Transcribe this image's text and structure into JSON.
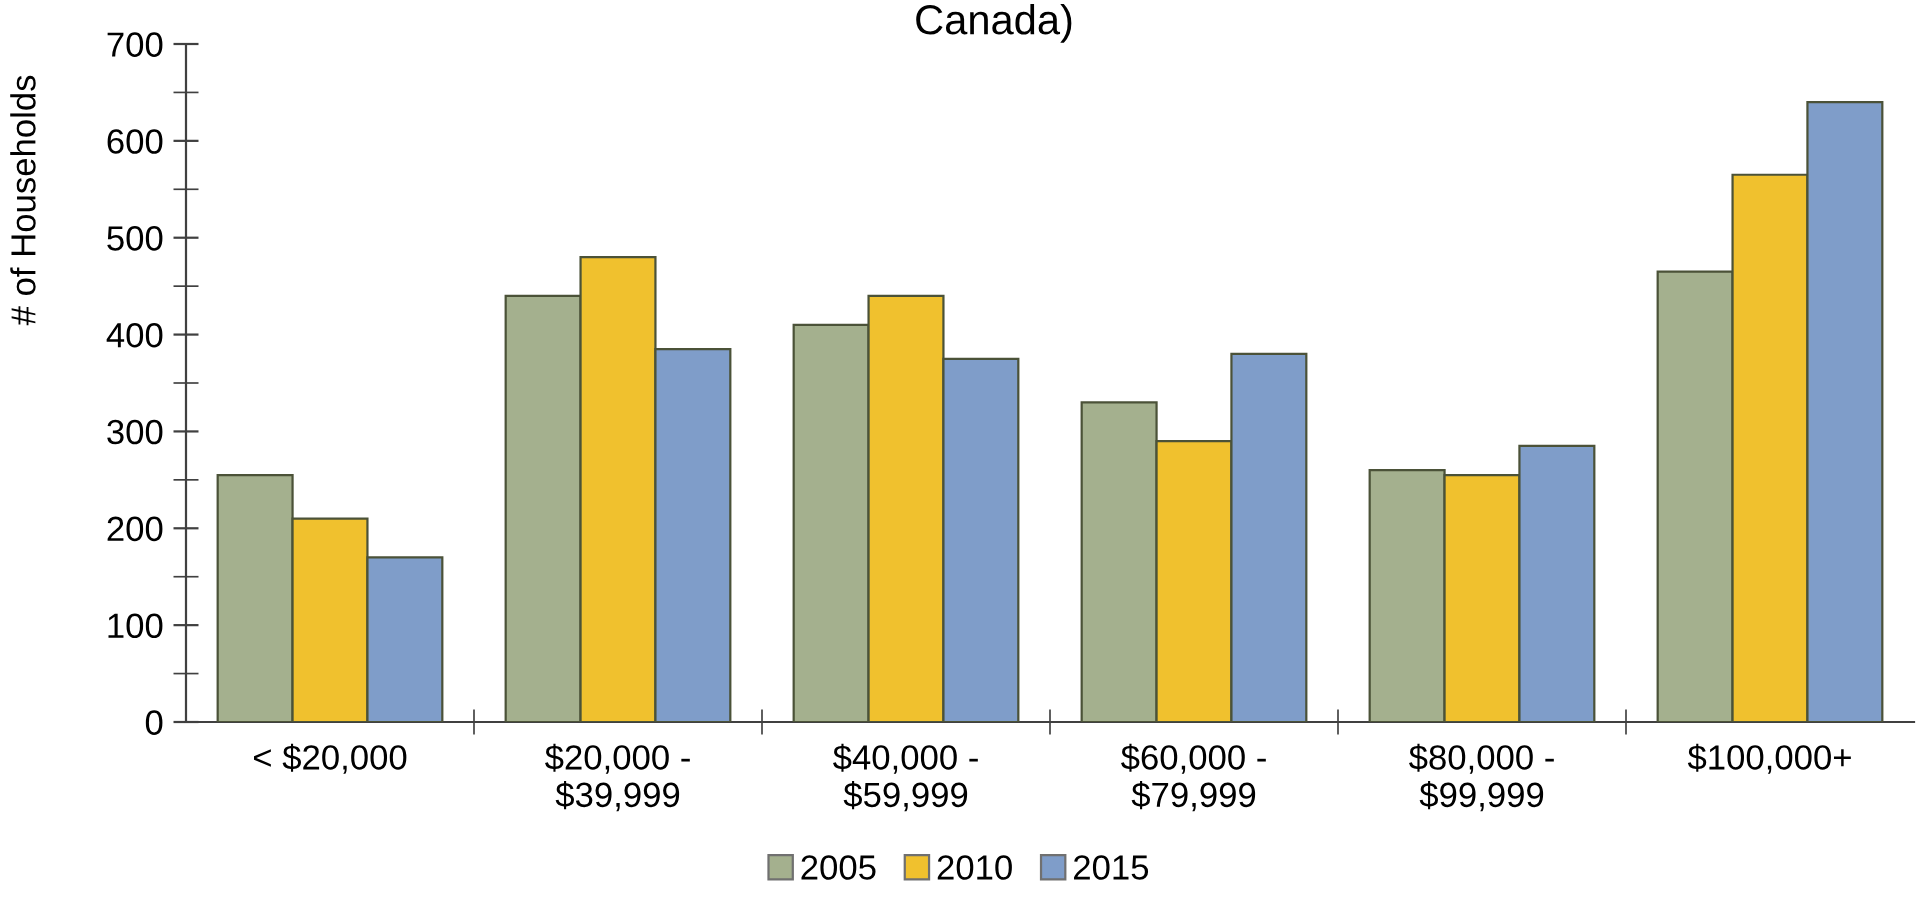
{
  "chart_data": {
    "type": "bar",
    "title": "Canada)",
    "ylabel": "# of Households",
    "categories": [
      "< $20,000",
      "$20,000 -\n$39,999",
      "$40,000 -\n$59,999",
      "$60,000 -\n$79,999",
      "$80,000 -\n$99,999",
      "$100,000+"
    ],
    "series": [
      {
        "name": "2005",
        "color": "#a4b08e",
        "values": [
          255,
          440,
          410,
          330,
          260,
          465
        ]
      },
      {
        "name": "2010",
        "color": "#f0c12e",
        "values": [
          210,
          480,
          440,
          290,
          255,
          565
        ]
      },
      {
        "name": "2015",
        "color": "#7f9dc9",
        "values": [
          170,
          385,
          375,
          380,
          285,
          640
        ]
      }
    ],
    "ylim": [
      0,
      700
    ],
    "yticks": [
      0,
      100,
      200,
      300,
      400,
      500,
      600,
      700
    ],
    "grid": false,
    "legend": "bottom"
  }
}
